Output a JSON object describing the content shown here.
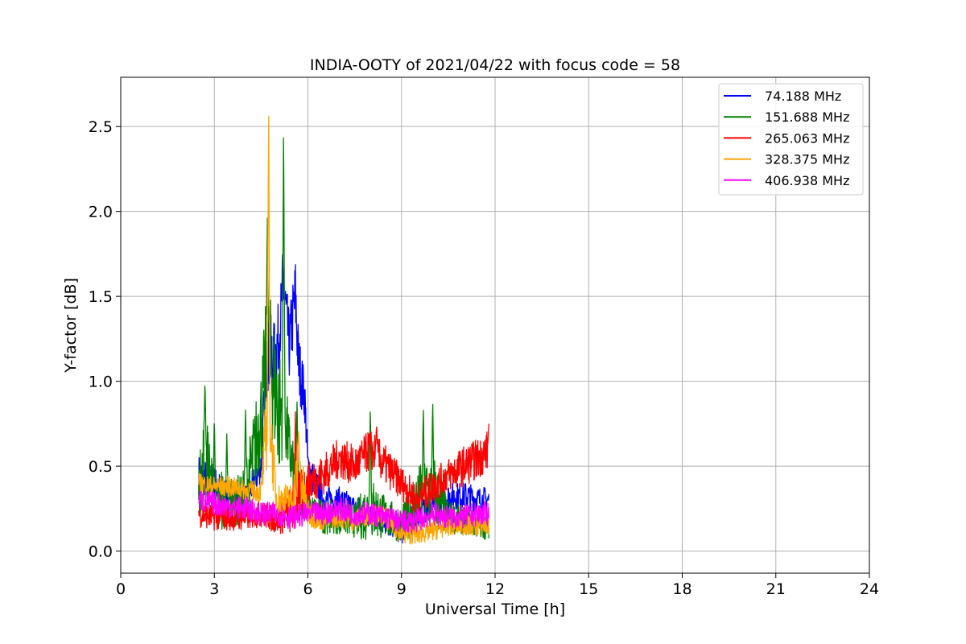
{
  "chart_data": {
    "type": "line",
    "title": "INDIA-OOTY of 2021/04/22 with focus code = 58",
    "xlabel": "Universal Time [h]",
    "ylabel": "Y-factor [dB]",
    "xlim": [
      0,
      24
    ],
    "ylim": [
      -0.13,
      2.79
    ],
    "xticks": [
      0,
      3,
      6,
      9,
      12,
      15,
      18,
      21,
      24
    ],
    "xtick_labels": [
      "0",
      "3",
      "6",
      "9",
      "12",
      "15",
      "18",
      "21",
      "24"
    ],
    "yticks": [
      0.0,
      0.5,
      1.0,
      1.5,
      2.0,
      2.5
    ],
    "ytick_labels": [
      "0.0",
      "0.5",
      "1.0",
      "1.5",
      "2.0",
      "2.5"
    ],
    "grid": true,
    "legend_position": "top-right",
    "series": [
      {
        "name": " 74.188 MHz",
        "color": "#0000ff",
        "x": [
          2.5,
          3.0,
          3.5,
          4.0,
          4.5,
          4.7,
          4.9,
          5.1,
          5.2,
          5.4,
          5.6,
          5.7,
          5.9,
          6.0,
          6.5,
          7.0,
          7.5,
          8.0,
          8.5,
          9.0,
          9.5,
          10.0,
          10.5,
          11.0,
          11.5,
          11.8
        ],
        "y": [
          0.45,
          0.4,
          0.32,
          0.3,
          0.5,
          1.2,
          1.1,
          1.3,
          1.6,
          1.2,
          1.5,
          1.1,
          0.9,
          0.5,
          0.3,
          0.3,
          0.25,
          0.22,
          0.18,
          0.12,
          0.22,
          0.28,
          0.32,
          0.33,
          0.3,
          0.3
        ],
        "band": [
          0.12,
          0.1,
          0.08,
          0.08,
          0.1,
          0.25,
          0.25,
          0.2,
          0.2,
          0.2,
          0.25,
          0.2,
          0.15,
          0.1,
          0.08,
          0.08,
          0.08,
          0.08,
          0.08,
          0.08,
          0.08,
          0.08,
          0.08,
          0.08,
          0.08,
          0.08
        ]
      },
      {
        "name": "151.688 MHz",
        "color": "#008000",
        "x": [
          2.5,
          2.7,
          3.0,
          3.3,
          3.6,
          3.9,
          4.2,
          4.5,
          4.7,
          4.9,
          5.1,
          5.2,
          5.4,
          5.6,
          6.0,
          6.5,
          7.0,
          7.5,
          8.0,
          8.5,
          9.0,
          9.5,
          10.0,
          10.5,
          11.0,
          11.5,
          11.8
        ],
        "y": [
          0.35,
          0.6,
          0.3,
          0.3,
          0.3,
          0.3,
          0.5,
          0.8,
          1.2,
          1.0,
          0.8,
          0.9,
          0.6,
          0.4,
          0.25,
          0.2,
          0.2,
          0.18,
          0.25,
          0.2,
          0.15,
          0.3,
          0.35,
          0.2,
          0.18,
          0.15,
          0.15
        ],
        "band": [
          0.15,
          0.3,
          0.12,
          0.2,
          0.15,
          0.15,
          0.25,
          0.3,
          0.4,
          0.4,
          0.4,
          0.3,
          0.2,
          0.15,
          0.1,
          0.1,
          0.1,
          0.1,
          0.2,
          0.12,
          0.1,
          0.2,
          0.25,
          0.1,
          0.08,
          0.08,
          0.08
        ],
        "spikes": [
          [
            2.7,
            1.01
          ],
          [
            3.0,
            0.8
          ],
          [
            3.4,
            0.7
          ],
          [
            4.0,
            0.85
          ],
          [
            4.7,
            1.98
          ],
          [
            5.22,
            2.53
          ],
          [
            5.65,
            0.9
          ],
          [
            8.0,
            0.86
          ],
          [
            9.7,
            0.86
          ],
          [
            10.0,
            0.89
          ]
        ]
      },
      {
        "name": "265.063 MHz",
        "color": "#ff0000",
        "x": [
          2.5,
          3.0,
          3.5,
          4.0,
          4.5,
          5.0,
          5.5,
          5.8,
          6.0,
          6.5,
          7.0,
          7.5,
          8.0,
          8.5,
          9.0,
          9.5,
          10.0,
          10.5,
          11.0,
          11.5,
          11.8
        ],
        "y": [
          0.22,
          0.2,
          0.2,
          0.2,
          0.22,
          0.18,
          0.25,
          0.35,
          0.4,
          0.45,
          0.55,
          0.5,
          0.6,
          0.5,
          0.4,
          0.3,
          0.38,
          0.45,
          0.5,
          0.55,
          0.6
        ],
        "band": [
          0.08,
          0.08,
          0.08,
          0.08,
          0.08,
          0.08,
          0.15,
          0.15,
          0.12,
          0.12,
          0.12,
          0.12,
          0.12,
          0.12,
          0.1,
          0.1,
          0.1,
          0.1,
          0.12,
          0.12,
          0.12
        ],
        "spikes": [
          [
            5.6,
            0.82
          ],
          [
            8.2,
            0.75
          ],
          [
            11.8,
            0.75
          ]
        ]
      },
      {
        "name": "328.375 MHz",
        "color": "#ffa500",
        "x": [
          2.5,
          3.0,
          3.5,
          4.0,
          4.5,
          4.7,
          4.75,
          4.85,
          5.0,
          5.5,
          5.7,
          6.0,
          6.5,
          7.0,
          7.5,
          8.0,
          8.5,
          9.0,
          9.5,
          10.0,
          10.5,
          11.0,
          11.5,
          11.8
        ],
        "y": [
          0.4,
          0.38,
          0.38,
          0.36,
          0.35,
          0.8,
          1.0,
          0.6,
          0.3,
          0.3,
          0.5,
          0.22,
          0.18,
          0.2,
          0.18,
          0.22,
          0.2,
          0.1,
          0.1,
          0.12,
          0.15,
          0.15,
          0.15,
          0.15
        ],
        "band": [
          0.06,
          0.06,
          0.06,
          0.06,
          0.06,
          0.3,
          0.3,
          0.2,
          0.1,
          0.1,
          0.2,
          0.08,
          0.06,
          0.06,
          0.06,
          0.06,
          0.06,
          0.06,
          0.06,
          0.06,
          0.06,
          0.06,
          0.06,
          0.06
        ],
        "spikes": [
          [
            4.74,
            2.66
          ],
          [
            5.7,
            0.72
          ]
        ]
      },
      {
        "name": "406.938 MHz",
        "color": "#ff00ff",
        "x": [
          2.5,
          3.0,
          3.5,
          4.0,
          4.5,
          5.0,
          5.5,
          6.0,
          6.5,
          7.0,
          7.5,
          8.0,
          8.5,
          9.0,
          9.5,
          10.0,
          10.5,
          11.0,
          11.5,
          11.8
        ],
        "y": [
          0.3,
          0.28,
          0.26,
          0.25,
          0.22,
          0.22,
          0.2,
          0.22,
          0.22,
          0.25,
          0.22,
          0.22,
          0.2,
          0.17,
          0.18,
          0.22,
          0.2,
          0.2,
          0.22,
          0.22
        ],
        "band": [
          0.07,
          0.07,
          0.07,
          0.07,
          0.07,
          0.07,
          0.07,
          0.07,
          0.07,
          0.07,
          0.07,
          0.07,
          0.07,
          0.07,
          0.07,
          0.07,
          0.07,
          0.07,
          0.07,
          0.07
        ]
      }
    ]
  }
}
